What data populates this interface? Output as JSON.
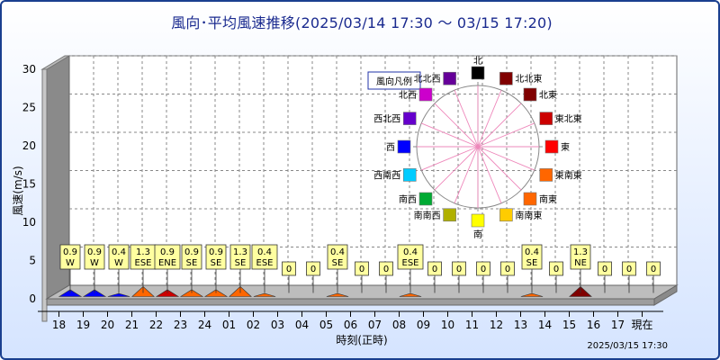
{
  "title": "風向･平均風速推移(2025/03/14 17:30 ～ 03/15 17:20)",
  "chart_data": {
    "type": "bar",
    "ylabel": "風速(m/s)",
    "xlabel": "時刻(正時)",
    "ylim": [
      0,
      30
    ],
    "y_ticks": [
      "0",
      "5",
      "10",
      "15",
      "20",
      "25",
      "30"
    ],
    "grid": true,
    "categories": [
      "18",
      "19",
      "20",
      "21",
      "22",
      "23",
      "24",
      "01",
      "02",
      "03",
      "04",
      "05",
      "06",
      "07",
      "08",
      "09",
      "10",
      "11",
      "12",
      "13",
      "14",
      "15",
      "16",
      "17",
      "現在"
    ],
    "values": [
      0.9,
      0.9,
      0.4,
      1.3,
      0.9,
      0.9,
      0.9,
      1.3,
      0.4,
      0,
      0,
      0.4,
      0,
      0,
      0.4,
      0,
      0,
      0,
      0,
      0.4,
      0,
      1.3,
      0,
      0,
      0
    ],
    "directions": [
      "W",
      "W",
      "W",
      "ESE",
      "ENE",
      "SE",
      "SE",
      "SE",
      "ESE",
      "",
      "",
      "SE",
      "",
      "",
      "ESE",
      "",
      "",
      "",
      "",
      "SE",
      "",
      "NE",
      "",
      "",
      ""
    ],
    "value_labels": [
      "0.9",
      "0.9",
      "0.4",
      "1.3",
      "0.9",
      "0.9",
      "0.9",
      "1.3",
      "0.4",
      "0",
      "0",
      "0.4",
      "0",
      "0",
      "0.4",
      "0",
      "0",
      "0",
      "0",
      "0.4",
      "0",
      "1.3",
      "0",
      "0",
      "0"
    ],
    "timestamp": "2025/03/15 17:30",
    "legend": {
      "title": "風向凡例",
      "placement": "top-right",
      "directions": [
        {
          "code": "N",
          "label": "北",
          "color": "#000000"
        },
        {
          "code": "NNE",
          "label": "北北東",
          "color": "#800000"
        },
        {
          "code": "NE",
          "label": "北東",
          "color": "#800000"
        },
        {
          "code": "ENE",
          "label": "東北東",
          "color": "#cc0000"
        },
        {
          "code": "E",
          "label": "東",
          "color": "#ff0000"
        },
        {
          "code": "ESE",
          "label": "東南東",
          "color": "#ff6600"
        },
        {
          "code": "SE",
          "label": "南東",
          "color": "#ff6600"
        },
        {
          "code": "SSE",
          "label": "南南東",
          "color": "#ffcc00"
        },
        {
          "code": "S",
          "label": "南",
          "color": "#ffff00"
        },
        {
          "code": "SSW",
          "label": "南南西",
          "color": "#b0b000"
        },
        {
          "code": "SW",
          "label": "南西",
          "color": "#00aa33"
        },
        {
          "code": "WSW",
          "label": "西南西",
          "color": "#00ccff"
        },
        {
          "code": "W",
          "label": "西",
          "color": "#0000ff"
        },
        {
          "code": "WNW",
          "label": "西北西",
          "color": "#6600cc"
        },
        {
          "code": "NW",
          "label": "北西",
          "color": "#cc00cc"
        },
        {
          "code": "NNW",
          "label": "北北西",
          "color": "#660099"
        }
      ]
    }
  }
}
